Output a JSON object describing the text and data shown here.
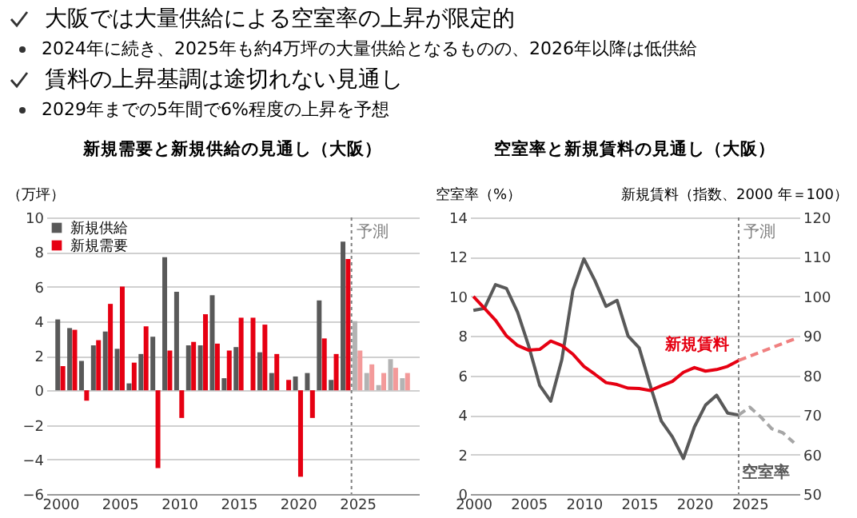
{
  "chart_data": [
    {
      "type": "bar",
      "title": "新規需要と新規供給の見通し（大阪）",
      "ylabel": "（万坪）",
      "annotations": [
        "大阪では大量供給による空室率の上昇が限定的",
        "2024年に続き、2025年も約4万坪の大量供給となるものの、2026年以降は低供給",
        "賃料の上昇基調は途切れない見通し",
        "2029年までの5年間で6%程度の上昇を予想"
      ],
      "xlim": [
        1999.5,
        2029.5
      ],
      "xticks": [
        2000,
        2005,
        2010,
        2015,
        2020,
        2025
      ],
      "ylim": [
        -6,
        10
      ],
      "yticks": [
        -6,
        -4,
        -2,
        0,
        2,
        4,
        6,
        8,
        10
      ],
      "grid": "y",
      "legend": "top left",
      "series": [
        {
          "name": "新規供給",
          "color": "#595959",
          "x": [
            2000,
            2001,
            2002,
            2003,
            2004,
            2005,
            2006,
            2007,
            2008,
            2009,
            2010,
            2011,
            2012,
            2013,
            2014,
            2015,
            2016,
            2017,
            2018,
            2019,
            2020,
            2021,
            2022,
            2023,
            2024
          ],
          "values": [
            4.1,
            3.6,
            1.7,
            2.6,
            3.4,
            2.4,
            0.4,
            2.1,
            3.1,
            7.7,
            5.7,
            2.6,
            2.6,
            5.5,
            0.7,
            2.5,
            0,
            2.2,
            1.0,
            0,
            0.8,
            1.0,
            5.2,
            0.6,
            8.6
          ]
        },
        {
          "name": "新規需要",
          "color": "#e60012",
          "x": [
            2000,
            2001,
            2002,
            2003,
            2004,
            2005,
            2006,
            2007,
            2008,
            2009,
            2010,
            2011,
            2012,
            2013,
            2014,
            2015,
            2016,
            2017,
            2018,
            2019,
            2020,
            2021,
            2022,
            2023,
            2024
          ],
          "values": [
            1.4,
            3.5,
            -0.6,
            2.9,
            5.0,
            6.0,
            1.6,
            3.7,
            -4.5,
            2.3,
            -1.6,
            2.8,
            4.4,
            2.7,
            2.3,
            4.2,
            4.2,
            3.8,
            2.1,
            0.6,
            -5.0,
            -1.6,
            3.0,
            2.1,
            7.6
          ]
        },
        {
          "color": "#b3b3b3",
          "x": [
            2025,
            2026,
            2027,
            2028,
            2029
          ],
          "values": [
            4.0,
            1.0,
            0.3,
            1.8,
            0.7
          ]
        },
        {
          "color": "#f39a9a",
          "x": [
            2025,
            2026,
            2027,
            2028,
            2029
          ],
          "values": [
            2.3,
            1.5,
            1.0,
            1.3,
            1.0
          ]
        }
      ],
      "ref_lines": [
        {
          "axis": "x",
          "value": 2024.5,
          "label": "予測",
          "line_style": "dotted",
          "color": "#808080"
        }
      ]
    },
    {
      "type": "line",
      "title": "空室率と新規賃料の見通し（大阪）",
      "ylabel": "空室率（%）",
      "y2label": "新規賃料（指数、2000 年＝100）",
      "xlim": [
        1999.7,
        2029.5
      ],
      "xticks": [
        2000,
        2005,
        2010,
        2015,
        2020,
        2025
      ],
      "ylim": [
        0,
        14
      ],
      "yticks": [
        0,
        2,
        4,
        6,
        8,
        10,
        12,
        14
      ],
      "y2lim": [
        50,
        120
      ],
      "y2ticks": [
        50,
        60,
        70,
        80,
        90,
        100,
        110,
        120
      ],
      "grid": "y",
      "line_style": "solid",
      "series": [
        {
          "name": "空室率",
          "color": "#595959",
          "x": [
            2000,
            2001,
            2002,
            2003,
            2004,
            2005,
            2006,
            2007,
            2008,
            2009,
            2010,
            2011,
            2012,
            2013,
            2014,
            2015,
            2016,
            2017,
            2018,
            2019,
            2020,
            2021,
            2022,
            2023,
            2024
          ],
          "values": [
            9.3,
            9.4,
            10.6,
            10.4,
            9.2,
            7.5,
            5.5,
            4.7,
            6.8,
            10.3,
            11.9,
            10.8,
            9.5,
            9.8,
            8.0,
            7.4,
            5.5,
            3.7,
            2.9,
            1.8,
            3.4,
            4.5,
            5.0,
            4.1,
            4.0
          ]
        },
        {
          "color": "#a6a6a6",
          "line_style": "dashed",
          "x": [
            2024,
            2025,
            2026,
            2027,
            2028,
            2029
          ],
          "values": [
            4.0,
            4.4,
            3.9,
            3.3,
            3.1,
            2.6
          ]
        },
        {
          "name": "新規賃料",
          "color": "#e60012",
          "axis": "y2",
          "x": [
            2000,
            2001,
            2002,
            2003,
            2004,
            2005,
            2006,
            2007,
            2008,
            2009,
            2010,
            2011,
            2012,
            2013,
            2014,
            2015,
            2016,
            2017,
            2018,
            2019,
            2020,
            2021,
            2022,
            2023,
            2024
          ],
          "values": [
            100,
            97,
            94,
            90,
            87.6,
            86.4,
            86.6,
            88.7,
            87.6,
            85.4,
            82.3,
            80.3,
            78.2,
            77.7,
            76.8,
            76.7,
            76.2,
            77.4,
            78.5,
            80.8,
            82,
            81.1,
            81.5,
            82.3,
            83.8
          ]
        },
        {
          "color": "#f08080",
          "axis": "y2",
          "line_style": "dashed",
          "x": [
            2024,
            2029
          ],
          "values": [
            83.8,
            89.2
          ]
        }
      ],
      "ref_lines": [
        {
          "axis": "x",
          "value": 2024,
          "label": "予測",
          "line_style": "dotted",
          "color": "#808080"
        }
      ]
    }
  ]
}
